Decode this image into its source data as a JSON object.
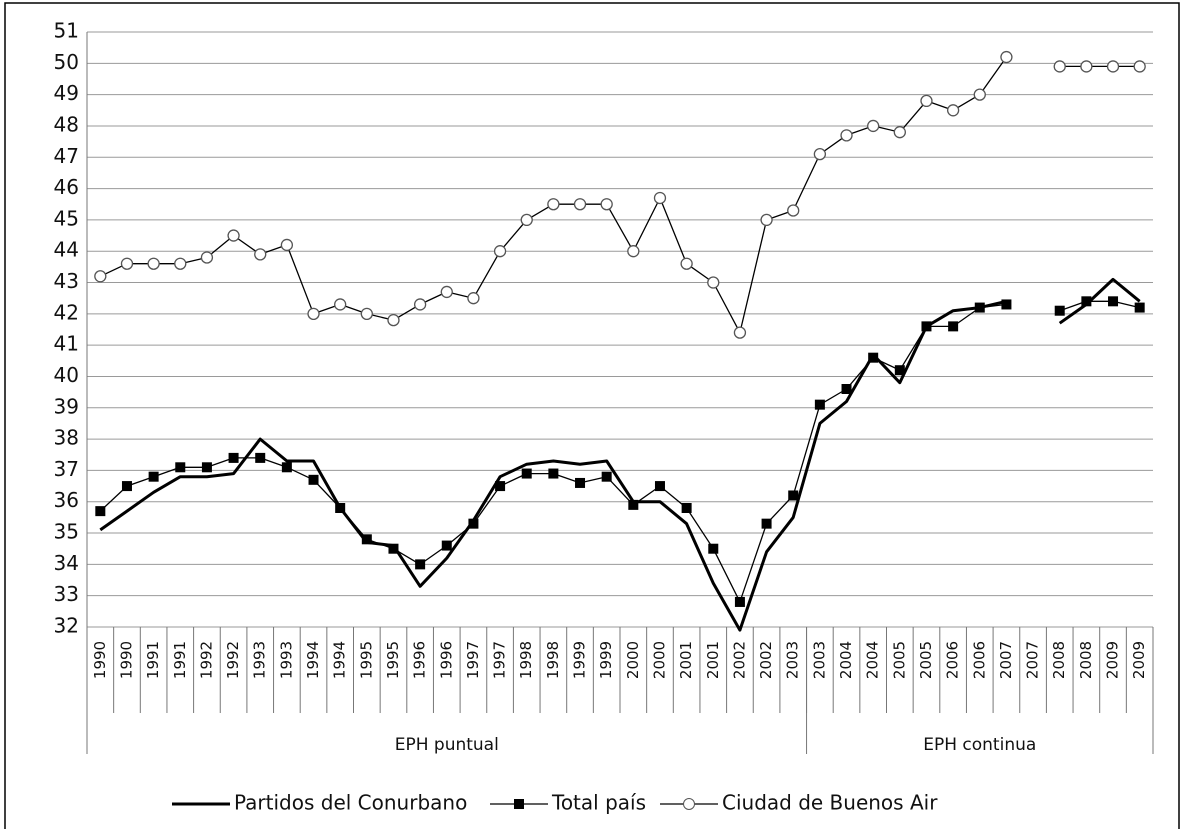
{
  "chart_data": {
    "type": "line",
    "categories": [
      "1990",
      "1990",
      "1991",
      "1991",
      "1992",
      "1992",
      "1993",
      "1993",
      "1994",
      "1994",
      "1995",
      "1995",
      "1996",
      "1996",
      "1997",
      "1997",
      "1998",
      "1998",
      "1999",
      "1999",
      "2000",
      "2000",
      "2001",
      "2001",
      "2002",
      "2002",
      "2003",
      "2003",
      "2004",
      "2004",
      "2005",
      "2005",
      "2006",
      "2006",
      "2007",
      "2007",
      "2008",
      "2008",
      "2009",
      "2009"
    ],
    "groups": [
      {
        "label": "EPH puntual",
        "span": 27
      },
      {
        "label": "EPH continua",
        "span": 13
      }
    ],
    "series": [
      {
        "name": "Partidos del Conurbano",
        "color": "#000000",
        "marker": "none",
        "values": [
          35.1,
          35.7,
          36.3,
          36.8,
          36.8,
          36.9,
          38.0,
          37.3,
          37.3,
          35.8,
          34.7,
          34.6,
          33.3,
          34.2,
          35.4,
          36.8,
          37.2,
          37.3,
          37.2,
          37.3,
          36.0,
          36.0,
          35.3,
          33.4,
          31.9,
          34.4,
          35.5,
          38.5,
          39.2,
          40.7,
          39.8,
          41.6,
          42.1,
          42.2,
          42.4,
          null,
          41.7,
          42.3,
          43.1,
          42.4
        ]
      },
      {
        "name": "Total país",
        "color": "#000000",
        "marker": "square",
        "values": [
          35.7,
          36.5,
          36.8,
          37.1,
          37.1,
          37.4,
          37.4,
          37.1,
          36.7,
          35.8,
          34.8,
          34.5,
          34.0,
          34.6,
          35.3,
          36.5,
          36.9,
          36.9,
          36.6,
          36.8,
          35.9,
          36.5,
          35.8,
          34.5,
          32.8,
          35.3,
          36.2,
          39.1,
          39.6,
          40.6,
          40.2,
          41.6,
          41.6,
          42.2,
          42.3,
          null,
          42.1,
          42.4,
          42.4,
          42.2
        ]
      },
      {
        "name": "Ciudad de Buenos Air",
        "color": "#000000",
        "marker": "circle",
        "values": [
          43.2,
          43.6,
          43.6,
          43.6,
          43.8,
          44.5,
          43.9,
          44.2,
          42.0,
          42.3,
          42.0,
          41.8,
          42.3,
          42.7,
          42.5,
          44.0,
          45.0,
          45.5,
          45.5,
          45.5,
          44.0,
          45.7,
          43.6,
          43.0,
          41.4,
          45.0,
          45.3,
          47.1,
          47.7,
          48.0,
          47.8,
          48.8,
          48.5,
          49.0,
          50.2,
          null,
          49.9,
          49.9,
          49.9,
          49.9
        ]
      }
    ],
    "ylim": [
      32,
      51
    ],
    "yticks": [
      32,
      33,
      34,
      35,
      36,
      37,
      38,
      39,
      40,
      41,
      42,
      43,
      44,
      45,
      46,
      47,
      48,
      49,
      50,
      51
    ],
    "grid": true,
    "legend": "bottom"
  }
}
